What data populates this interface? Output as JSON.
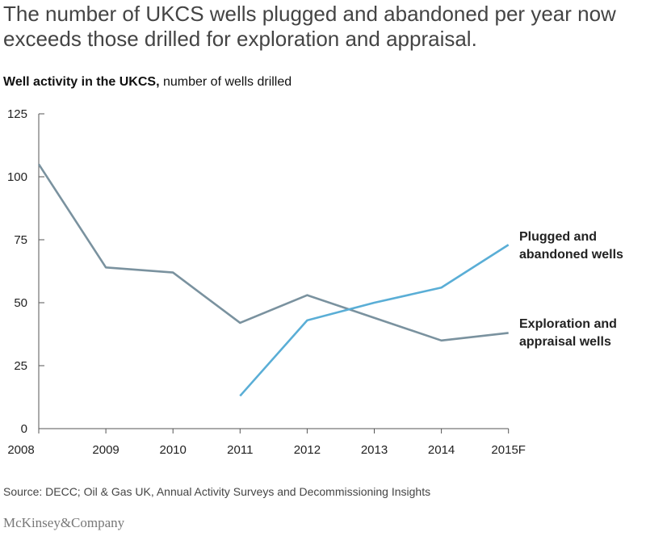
{
  "headline": "The number of UKCS wells plugged and abandoned per year now exceeds those drilled for exploration and appraisal.",
  "subtitle_bold": "Well activity in the UKCS,",
  "subtitle_rest": " number of wells drilled",
  "source": "Source: DECC; Oil & Gas UK, Annual Activity Surveys and Decommissioning Insights",
  "logo": "McKinsey&Company",
  "chart_data": {
    "type": "line",
    "categories": [
      "2008",
      "2009",
      "2010",
      "2011",
      "2012",
      "2013",
      "2014",
      "2015F"
    ],
    "yticks": [
      0,
      25,
      50,
      75,
      100,
      125
    ],
    "ylim": [
      0,
      125
    ],
    "grid": false,
    "series": [
      {
        "name": "Exploration and appraisal wells",
        "label_lines": [
          "Exploration and",
          "appraisal wells"
        ],
        "color": "#7a929f",
        "values": [
          105,
          64,
          62,
          42,
          53,
          44,
          35,
          38
        ]
      },
      {
        "name": "Plugged and abandoned wells",
        "label_lines": [
          "Plugged and",
          "abandoned wells"
        ],
        "color": "#5aaed6",
        "values": [
          null,
          null,
          null,
          13,
          43,
          50,
          56,
          73
        ]
      }
    ]
  }
}
